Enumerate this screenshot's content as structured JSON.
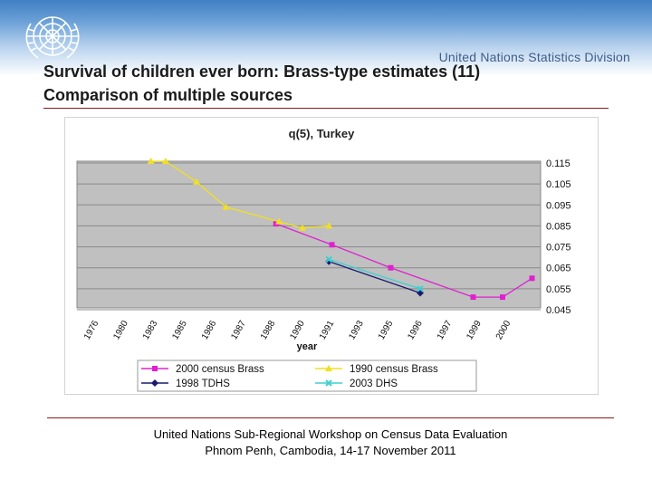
{
  "header": {
    "org_name": "United Nations Statistics Division",
    "title_line1": "Survival of children ever born: Brass-type estimates (11)",
    "title_line2": "Comparison of multiple sources"
  },
  "footer": {
    "line1": "United Nations Sub-Regional Workshop on Census Data Evaluation",
    "line2": "Phnom Penh, Cambodia, 14-17 November 2011"
  },
  "colors": {
    "banner": "#3f7fc4",
    "rule": "#8b1a1a",
    "plot_bg": "#c0c0c0"
  },
  "chart_data": {
    "type": "line",
    "title": "q(5), Turkey",
    "xlabel": "year",
    "ylabel": "",
    "categories": [
      "1976",
      "1980",
      "1983",
      "1985",
      "1986",
      "1987",
      "1988",
      "1990",
      "1991",
      "1993",
      "1995",
      "1996",
      "1997",
      "1999",
      "2000"
    ],
    "yticks": [
      "0.115",
      "0.105",
      "0.095",
      "0.085",
      "0.075",
      "0.065",
      "0.055",
      "0.045"
    ],
    "ylim": [
      0.045,
      0.115
    ],
    "series": [
      {
        "name": "2000 census Brass",
        "color": "#e020d0",
        "marker": "square",
        "points": [
          [
            6.2,
            0.086
          ],
          [
            8.1,
            0.076
          ],
          [
            10.1,
            0.065
          ],
          [
            12.9,
            0.051
          ],
          [
            13.9,
            0.051
          ],
          [
            14.9,
            0.06
          ]
        ]
      },
      {
        "name": "1990 census Brass",
        "color": "#f0e020",
        "marker": "triangle",
        "points": [
          [
            1.95,
            0.12
          ],
          [
            2.45,
            0.116
          ],
          [
            3.5,
            0.106
          ],
          [
            4.5,
            0.094
          ],
          [
            6.3,
            0.087
          ],
          [
            7.1,
            0.084
          ],
          [
            8.0,
            0.085
          ]
        ]
      },
      {
        "name": "1998 TDHS",
        "color": "#1a1a6e",
        "marker": "diamond",
        "points": [
          [
            8.0,
            0.068
          ],
          [
            11.1,
            0.053
          ]
        ]
      },
      {
        "name": "2003 DHS",
        "color": "#3fd0d0",
        "marker": "x",
        "points": [
          [
            8.0,
            0.069
          ],
          [
            11.1,
            0.055
          ]
        ]
      }
    ],
    "legend": "bottom"
  }
}
